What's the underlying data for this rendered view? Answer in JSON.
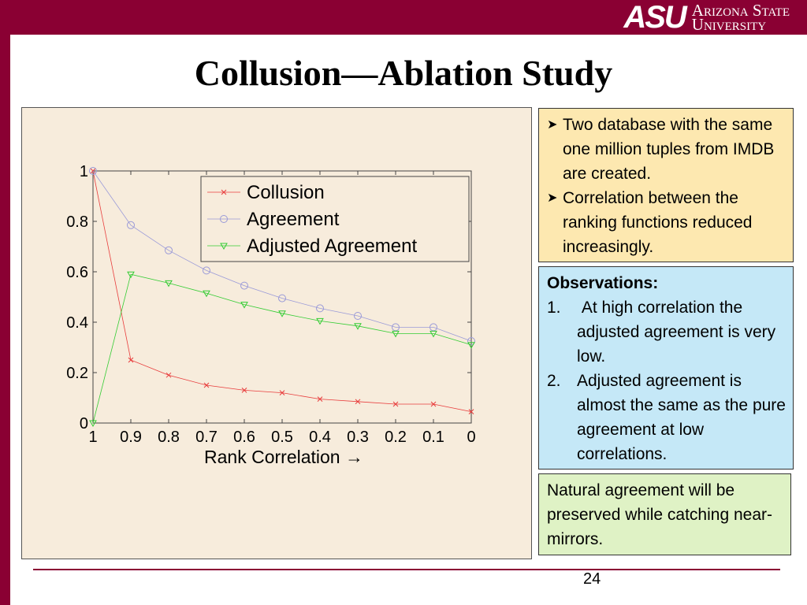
{
  "header": {
    "logo_mark": "ASU",
    "logo_line1": "Arizona State",
    "logo_line2": "University",
    "brand_color": "#8a0033"
  },
  "slide": {
    "title": "Collusion—Ablation Study",
    "page_number": "24"
  },
  "info_box": {
    "bullets": [
      "Two database with the same one million tuples from IMDB are created.",
      "Correlation between the ranking functions reduced increasingly."
    ]
  },
  "observations": {
    "title": "Observations:",
    "items": [
      {
        "num": "1.",
        "text": " At high correlation the adjusted agreement is very low."
      },
      {
        "num": "2.",
        "text": "Adjusted agreement is almost the same as the pure agreement at low correlations."
      }
    ]
  },
  "conclusion": {
    "text": "Natural agreement will be preserved while catching near-mirrors."
  },
  "chart_data": {
    "type": "line",
    "title": "",
    "xlabel": "Rank Correlation →",
    "ylabel": "",
    "x": [
      1,
      0.9,
      0.8,
      0.7,
      0.6,
      0.5,
      0.4,
      0.3,
      0.2,
      0.1,
      0
    ],
    "x_tick_labels": [
      "1",
      "0.9",
      "0.8",
      "0.7",
      "0.6",
      "0.5",
      "0.4",
      "0.3",
      "0.2",
      "0.1",
      "0"
    ],
    "x_reversed": true,
    "xlim": [
      0,
      1
    ],
    "ylim": [
      0,
      1
    ],
    "y_ticks": [
      0,
      0.2,
      0.4,
      0.6,
      0.8,
      1
    ],
    "y_tick_labels": [
      "0",
      "0.2",
      "0.4",
      "0.6",
      "0.8",
      "1"
    ],
    "legend_position": "top-right",
    "grid": false,
    "series": [
      {
        "name": "Collusion",
        "color": "#e83c3c",
        "marker": "cross",
        "values": [
          1.0,
          0.25,
          0.19,
          0.15,
          0.13,
          0.12,
          0.095,
          0.085,
          0.075,
          0.075,
          0.045
        ]
      },
      {
        "name": "Agreement",
        "color": "#9a9ad8",
        "marker": "circle",
        "values": [
          1.0,
          0.785,
          0.685,
          0.605,
          0.545,
          0.495,
          0.455,
          0.425,
          0.38,
          0.38,
          0.325
        ]
      },
      {
        "name": "Adjusted Agreement",
        "color": "#33cc33",
        "marker": "triangle",
        "values": [
          0.0,
          0.59,
          0.555,
          0.515,
          0.47,
          0.435,
          0.405,
          0.385,
          0.355,
          0.355,
          0.31
        ]
      }
    ]
  }
}
